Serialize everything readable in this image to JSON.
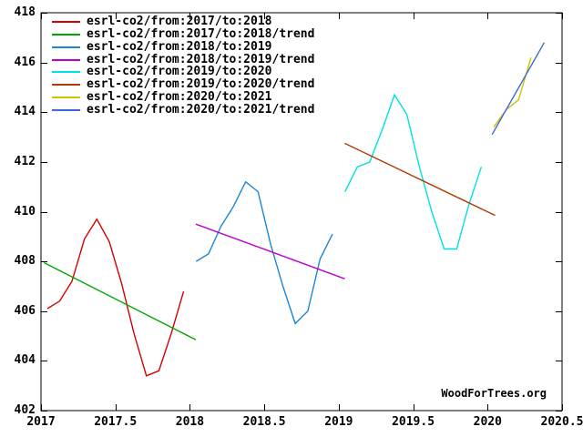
{
  "watermark": "WoodForTrees.org",
  "chart_data": {
    "type": "line",
    "title": "",
    "xlabel": "",
    "ylabel": "",
    "grid": false,
    "legend_position": "top-left",
    "xlim": [
      2017,
      2020.5
    ],
    "ylim": [
      402,
      418
    ],
    "x_ticks": [
      {
        "value": 2017,
        "label": "2017"
      },
      {
        "value": 2017.5,
        "label": "2017.5"
      },
      {
        "value": 2018,
        "label": "2018"
      },
      {
        "value": 2018.5,
        "label": "2018.5"
      },
      {
        "value": 2019,
        "label": "2019"
      },
      {
        "value": 2019.5,
        "label": "2019.5"
      },
      {
        "value": 2020,
        "label": "2020"
      },
      {
        "value": 2020.5,
        "label": "2020.5"
      }
    ],
    "y_ticks": [
      {
        "value": 402,
        "label": "402"
      },
      {
        "value": 404,
        "label": "404"
      },
      {
        "value": 406,
        "label": "406"
      },
      {
        "value": 408,
        "label": "408"
      },
      {
        "value": 410,
        "label": "410"
      },
      {
        "value": 412,
        "label": "412"
      },
      {
        "value": 414,
        "label": "414"
      },
      {
        "value": 416,
        "label": "416"
      }
    ],
    "y_top_label": "418",
    "series": [
      {
        "id": "co2-2017",
        "label": "esrl-co2/from:2017/to:2018",
        "color": "#d40000",
        "x": [
          2017.042,
          2017.125,
          2017.208,
          2017.292,
          2017.375,
          2017.458,
          2017.542,
          2017.625,
          2017.708,
          2017.792,
          2017.875,
          2017.958
        ],
        "values": [
          406.1,
          406.4,
          407.2,
          408.9,
          409.7,
          408.8,
          407.1,
          405.1,
          403.4,
          403.6,
          405.1,
          406.8
        ]
      },
      {
        "id": "co2-2017-trend",
        "label": "esrl-co2/from:2017/to:2018/trend",
        "color": "#00a400",
        "x": [
          2017.02,
          2018.04
        ],
        "values": [
          407.95,
          404.85
        ]
      },
      {
        "id": "co2-2018",
        "label": "esrl-co2/from:2018/to:2019",
        "color": "#1c86d8",
        "x": [
          2018.042,
          2018.125,
          2018.208,
          2018.292,
          2018.375,
          2018.458,
          2018.542,
          2018.625,
          2018.708,
          2018.792,
          2018.875,
          2018.958
        ],
        "values": [
          408.0,
          408.3,
          409.4,
          410.2,
          411.2,
          410.8,
          408.7,
          407.0,
          405.5,
          406.0,
          408.1,
          409.1
        ]
      },
      {
        "id": "co2-2018-trend",
        "label": "esrl-co2/from:2018/to:2019/trend",
        "color": "#bb00cc",
        "x": [
          2018.04,
          2019.04
        ],
        "values": [
          409.5,
          407.3
        ]
      },
      {
        "id": "co2-2019",
        "label": "esrl-co2/from:2019/to:2020",
        "color": "#00e0e0",
        "x": [
          2019.042,
          2019.125,
          2019.208,
          2019.292,
          2019.375,
          2019.458,
          2019.542,
          2019.625,
          2019.708,
          2019.792,
          2019.875,
          2019.958
        ],
        "values": [
          410.8,
          411.8,
          412.0,
          413.3,
          414.7,
          413.9,
          411.8,
          410.0,
          408.5,
          408.5,
          410.3,
          411.8
        ]
      },
      {
        "id": "co2-2019-trend",
        "label": "esrl-co2/from:2019/to:2020/trend",
        "color": "#b03a00",
        "x": [
          2019.04,
          2020.05
        ],
        "values": [
          412.75,
          409.85
        ]
      },
      {
        "id": "co2-2020",
        "label": "esrl-co2/from:2020/to:2021",
        "color": "#ccc400",
        "x": [
          2020.042,
          2020.125,
          2020.208,
          2020.292
        ],
        "values": [
          413.4,
          414.1,
          414.5,
          416.2
        ]
      },
      {
        "id": "co2-2020-trend",
        "label": "esrl-co2/from:2020/to:2021/trend",
        "color": "#4067d9",
        "x": [
          2020.03,
          2020.38
        ],
        "values": [
          413.1,
          416.8
        ]
      }
    ]
  }
}
